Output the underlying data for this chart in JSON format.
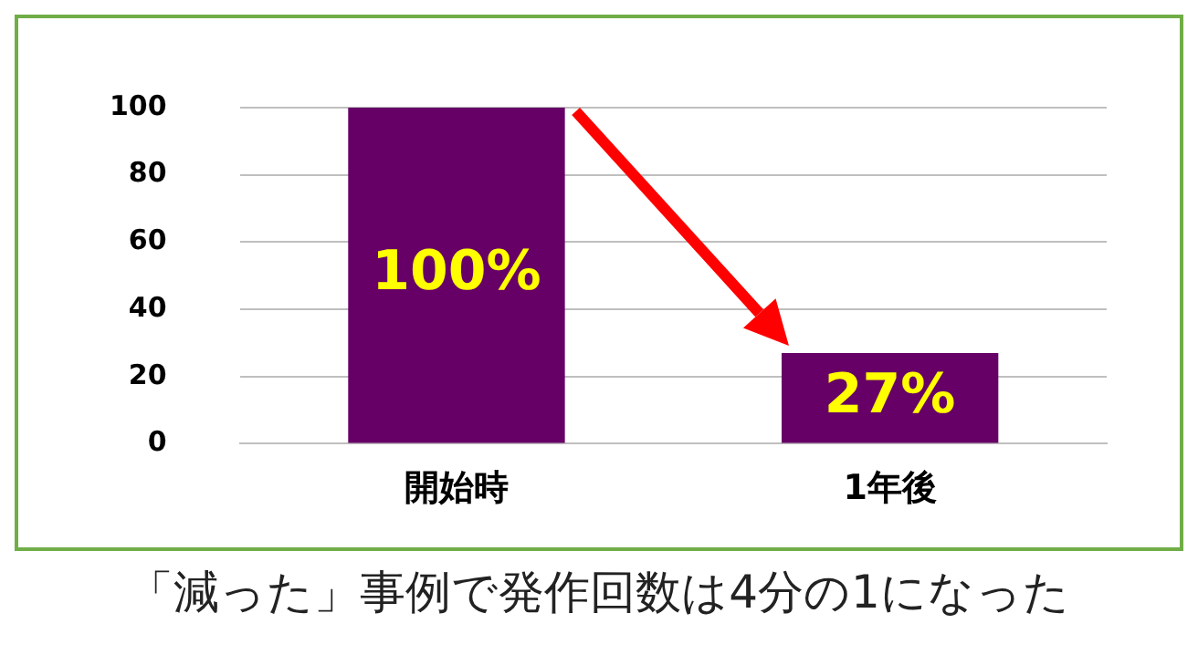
{
  "chart_data": {
    "type": "bar",
    "categories": [
      "開始時",
      "1年後"
    ],
    "values": [
      100,
      27
    ],
    "color": "#660066",
    "value_labels": [
      "100%",
      "27%"
    ],
    "ylim": [
      0,
      100
    ],
    "yticks": [
      0,
      20,
      40,
      60,
      80,
      100
    ],
    "grid": "y",
    "annotations": [
      "「減った」事例で発作回数は4分の1になった"
    ]
  }
}
